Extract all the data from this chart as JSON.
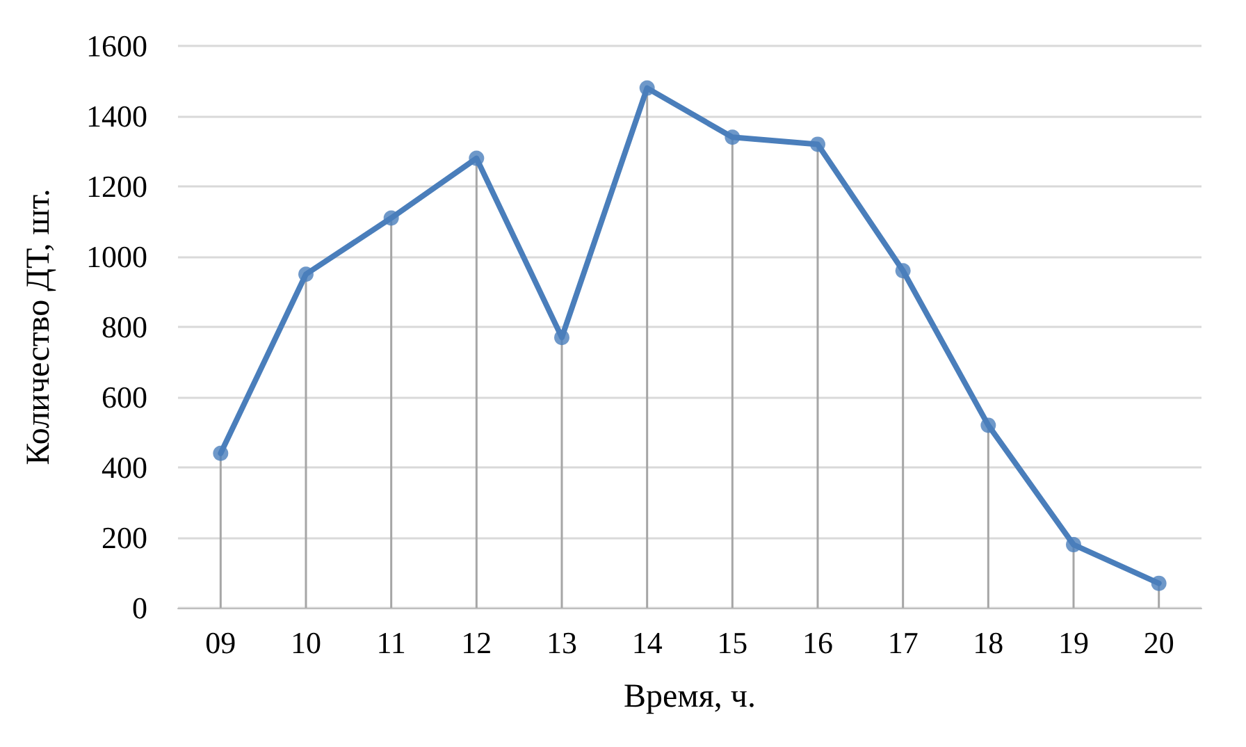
{
  "chart_data": {
    "type": "line",
    "xlabel": "Время, ч.",
    "ylabel": "Количество ДТ, шт.",
    "categories": [
      "09",
      "10",
      "11",
      "12",
      "13",
      "14",
      "15",
      "16",
      "17",
      "18",
      "19",
      "20"
    ],
    "series": [
      {
        "marker": "none",
        "color": "#4a7ebb",
        "values": [
          440,
          950,
          1110,
          1280,
          770,
          1480,
          1340,
          1320,
          960,
          520,
          180,
          70
        ]
      },
      {
        "type": "lollipop",
        "color": "#4a7ebb",
        "values": [
          440,
          950,
          1110,
          1280,
          770,
          1480,
          1340,
          1320,
          960,
          520,
          180,
          70
        ]
      }
    ],
    "ylim": [
      0,
      1600
    ],
    "yticks": [
      0,
      200,
      400,
      600,
      800,
      1000,
      1200,
      1400,
      1600
    ],
    "grid": "y",
    "marker": "circle",
    "line_style": "solid"
  }
}
